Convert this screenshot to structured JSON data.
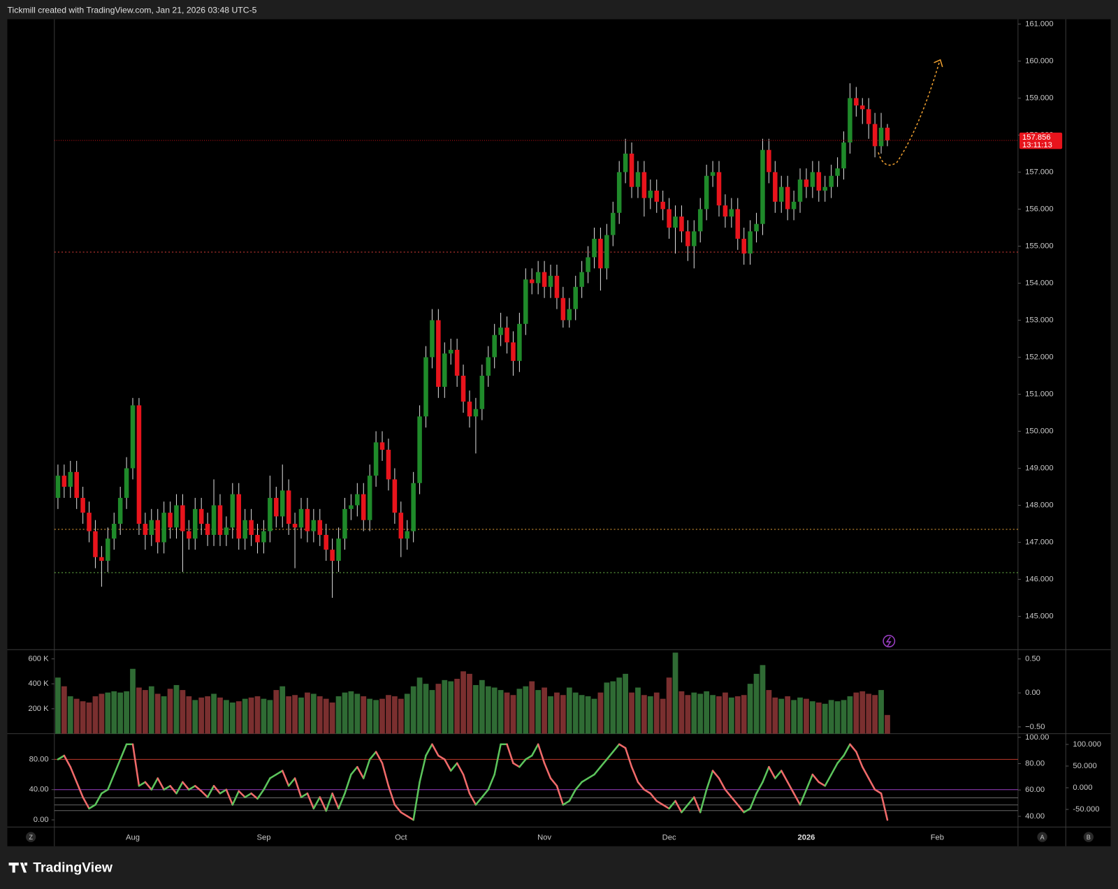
{
  "header": "Tickmill created with TradingView.com, Jan 21, 2026 03:48 UTC-5",
  "footer_logo": "TradingView",
  "buttons": [
    "Z",
    "A",
    "B"
  ],
  "chart_data": [
    {
      "type": "candlestick",
      "categories": [
        null,
        null,
        null,
        null,
        null,
        null,
        null,
        null,
        null,
        null,
        null,
        null,
        "Aug",
        null,
        null,
        null,
        null,
        null,
        null,
        null,
        null,
        null,
        null,
        null,
        null,
        null,
        null,
        null,
        null,
        null,
        null,
        null,
        null,
        "Sep",
        null,
        null,
        null,
        null,
        null,
        null,
        null,
        null,
        null,
        null,
        null,
        null,
        null,
        null,
        null,
        null,
        null,
        null,
        null,
        null,
        null,
        "Oct",
        null,
        null,
        null,
        null,
        null,
        null,
        null,
        null,
        null,
        null,
        null,
        null,
        null,
        null,
        null,
        null,
        null,
        null,
        null,
        null,
        null,
        null,
        "Nov",
        null,
        null,
        null,
        null,
        null,
        null,
        null,
        null,
        null,
        null,
        null,
        null,
        null,
        null,
        null,
        null,
        null,
        null,
        null,
        "Dec",
        null,
        null,
        null,
        null,
        null,
        null,
        null,
        null,
        null,
        null,
        null,
        null,
        null,
        null,
        null,
        null,
        null,
        null,
        null,
        null,
        null,
        "2026",
        null,
        null,
        null,
        null,
        null,
        null,
        null,
        null,
        null,
        null,
        null,
        null,
        null,
        null,
        null,
        null,
        null,
        null,
        null,
        null,
        "Feb"
      ],
      "open": [
        148.2,
        148.8,
        148.5,
        148.9,
        148.2,
        147.8,
        147.3,
        146.6,
        146.5,
        147.1,
        147.5,
        148.2,
        149.0,
        150.7,
        147.5,
        147.2,
        147.6,
        147.0,
        147.8,
        147.4,
        148.0,
        147.3,
        147.1,
        147.9,
        147.5,
        147.2,
        148.0,
        147.2,
        147.4,
        148.3,
        147.1,
        147.6,
        147.2,
        147.0,
        147.3,
        148.2,
        147.7,
        148.4,
        147.5,
        147.4,
        147.9,
        147.3,
        147.6,
        147.2,
        146.8,
        146.5,
        147.1,
        147.9,
        148.0,
        148.3,
        147.6,
        148.8,
        149.7,
        149.5,
        148.7,
        147.8,
        147.1,
        147.3,
        148.6,
        150.4,
        152.0,
        153.0,
        151.2,
        152.1,
        152.2,
        151.5,
        150.8,
        150.4,
        150.6,
        151.5,
        152.0,
        152.6,
        152.8,
        152.4,
        151.9,
        152.9,
        154.1,
        154.0,
        154.3,
        153.9,
        154.2,
        153.6,
        153.0,
        153.3,
        153.9,
        154.3,
        154.7,
        155.2,
        154.4,
        155.3,
        155.9,
        157.0,
        157.5,
        156.6,
        157.0,
        156.3,
        156.5,
        156.2,
        156.0,
        155.5,
        155.8,
        155.4,
        155.0,
        155.4,
        156.0,
        156.9,
        157.0,
        156.1,
        155.8,
        156.0,
        155.2,
        154.8,
        155.4,
        155.6,
        157.6,
        157.0,
        156.2,
        156.6,
        156.0,
        156.2,
        156.8,
        156.6,
        157.0,
        156.5,
        156.6,
        156.9,
        157.1,
        157.8,
        159.0,
        158.8,
        158.7,
        158.3,
        157.7,
        158.2,
        null,
        null,
        null,
        null,
        null,
        null,
        null,
        null
      ],
      "high": [
        149.1,
        149.1,
        149.2,
        149.2,
        148.5,
        148.1,
        147.6,
        146.9,
        147.4,
        147.8,
        148.5,
        149.3,
        150.9,
        150.9,
        147.8,
        147.9,
        147.9,
        148.1,
        148.1,
        148.3,
        148.3,
        147.6,
        148.2,
        148.2,
        147.8,
        148.7,
        148.3,
        147.7,
        148.6,
        148.6,
        147.9,
        147.9,
        147.5,
        147.6,
        148.8,
        148.5,
        149.1,
        148.7,
        147.8,
        148.2,
        148.2,
        147.9,
        147.9,
        147.5,
        147.1,
        147.4,
        148.2,
        148.3,
        148.6,
        148.6,
        149.1,
        150.0,
        150.0,
        149.8,
        149.0,
        148.1,
        147.6,
        148.9,
        150.7,
        152.3,
        153.3,
        153.3,
        152.4,
        152.5,
        152.5,
        151.8,
        151.1,
        150.9,
        151.8,
        152.3,
        152.9,
        153.2,
        153.1,
        152.7,
        153.2,
        154.4,
        154.4,
        154.6,
        154.6,
        154.5,
        154.5,
        153.9,
        153.6,
        154.2,
        154.6,
        155.0,
        155.5,
        155.5,
        155.6,
        156.2,
        157.3,
        157.9,
        157.8,
        157.3,
        157.3,
        156.8,
        156.8,
        156.5,
        156.3,
        156.1,
        156.1,
        155.7,
        155.7,
        156.3,
        157.2,
        157.3,
        157.3,
        156.4,
        156.3,
        156.3,
        155.5,
        155.7,
        155.9,
        157.9,
        157.9,
        157.3,
        156.9,
        156.9,
        156.5,
        157.1,
        157.1,
        157.3,
        157.3,
        156.9,
        157.2,
        157.4,
        158.1,
        159.4,
        159.3,
        159.0,
        159.0,
        158.6,
        158.6,
        158.3,
        null,
        null,
        null,
        null,
        null,
        null,
        null,
        null
      ],
      "low": [
        147.9,
        148.2,
        148.2,
        147.9,
        147.5,
        147.0,
        146.3,
        145.8,
        146.2,
        146.8,
        147.2,
        147.9,
        148.7,
        147.2,
        146.8,
        146.9,
        146.7,
        146.7,
        147.1,
        147.1,
        146.2,
        146.8,
        146.8,
        147.2,
        146.9,
        146.9,
        146.9,
        146.9,
        147.1,
        146.8,
        146.8,
        146.9,
        146.7,
        146.7,
        147.0,
        147.4,
        147.4,
        147.2,
        146.3,
        147.1,
        147.0,
        147.0,
        146.9,
        146.5,
        145.5,
        146.2,
        146.8,
        147.6,
        147.7,
        147.3,
        147.3,
        148.5,
        149.2,
        148.4,
        147.5,
        146.6,
        146.8,
        147.0,
        148.3,
        150.1,
        151.7,
        150.9,
        150.9,
        151.8,
        151.2,
        150.5,
        150.1,
        149.4,
        150.3,
        151.2,
        151.7,
        152.3,
        152.1,
        151.5,
        151.6,
        152.6,
        153.7,
        153.7,
        153.6,
        153.6,
        153.3,
        152.8,
        152.8,
        153.0,
        153.6,
        154.0,
        154.4,
        153.8,
        154.1,
        155.0,
        155.6,
        156.7,
        156.3,
        156.3,
        155.8,
        156.0,
        155.9,
        155.7,
        155.2,
        154.8,
        155.1,
        154.6,
        154.4,
        155.1,
        155.7,
        156.6,
        155.8,
        155.5,
        155.5,
        154.9,
        154.5,
        154.5,
        155.1,
        155.3,
        156.7,
        155.9,
        155.9,
        155.7,
        155.7,
        155.9,
        156.3,
        156.3,
        156.2,
        156.2,
        156.3,
        156.6,
        156.8,
        157.5,
        158.5,
        158.3,
        157.9,
        157.4,
        157.5,
        157.7,
        null,
        null,
        null,
        null,
        null,
        null,
        null,
        null
      ],
      "close": [
        148.8,
        148.5,
        148.9,
        148.2,
        147.8,
        147.3,
        146.6,
        146.5,
        147.1,
        147.5,
        148.2,
        149.0,
        150.7,
        147.5,
        147.2,
        147.6,
        147.0,
        147.8,
        147.4,
        148.0,
        147.3,
        147.1,
        147.9,
        147.5,
        147.2,
        148.0,
        147.2,
        147.4,
        148.3,
        147.1,
        147.6,
        147.2,
        147.0,
        147.3,
        148.2,
        147.7,
        148.4,
        147.5,
        147.4,
        147.9,
        147.3,
        147.6,
        147.2,
        146.8,
        146.5,
        147.1,
        147.9,
        148.0,
        148.3,
        147.6,
        148.8,
        149.7,
        149.5,
        148.7,
        147.8,
        147.1,
        147.3,
        148.6,
        150.4,
        152.0,
        153.0,
        151.2,
        152.1,
        152.2,
        151.5,
        150.8,
        150.4,
        150.6,
        151.5,
        152.0,
        152.6,
        152.8,
        152.4,
        151.9,
        152.9,
        154.1,
        154.0,
        154.3,
        153.9,
        154.2,
        153.6,
        153.0,
        153.3,
        153.9,
        154.3,
        154.7,
        155.2,
        154.4,
        155.3,
        155.9,
        157.0,
        157.5,
        156.6,
        157.0,
        156.3,
        156.5,
        156.2,
        156.0,
        155.5,
        155.8,
        155.4,
        155.0,
        155.4,
        156.0,
        156.9,
        157.0,
        156.1,
        155.8,
        156.0,
        155.2,
        154.8,
        155.4,
        155.6,
        157.6,
        157.0,
        156.2,
        156.6,
        156.0,
        156.2,
        156.8,
        156.6,
        157.0,
        156.5,
        156.6,
        156.9,
        157.1,
        157.8,
        159.0,
        158.8,
        158.7,
        158.3,
        157.7,
        158.2,
        157.86,
        null,
        null,
        null,
        null,
        null,
        null,
        null,
        null
      ],
      "up_color": "#1f8a2a",
      "down_color": "#e8141c",
      "ylim": [
        144.1,
        161.13
      ],
      "yticks": [
        {
          "value": 145,
          "label": "145.000"
        },
        {
          "value": 146,
          "label": "146.000"
        },
        {
          "value": 147,
          "label": "147.000"
        },
        {
          "value": 148,
          "label": "148.000"
        },
        {
          "value": 149,
          "label": "149.000"
        },
        {
          "value": 150,
          "label": "150.000"
        },
        {
          "value": 151,
          "label": "151.000"
        },
        {
          "value": 152,
          "label": "152.000"
        },
        {
          "value": 153,
          "label": "153.000"
        },
        {
          "value": 154,
          "label": "154.000"
        },
        {
          "value": 155,
          "label": "155.000"
        },
        {
          "value": 156,
          "label": "156.000"
        },
        {
          "value": 157,
          "label": "157.000"
        },
        {
          "value": 158,
          "label": "158.000"
        },
        {
          "value": 159,
          "label": "159.000"
        },
        {
          "value": 160,
          "label": "160.000"
        },
        {
          "value": 161,
          "label": "161.000"
        }
      ],
      "hlines": [
        {
          "value": 154.84,
          "color": "#e0413a"
        },
        {
          "value": 147.35,
          "color": "#e8a33a"
        },
        {
          "value": 146.18,
          "color": "#6fbf4a"
        }
      ],
      "last_price": {
        "value": 157.856,
        "label": "157.856",
        "color": "#e8141c"
      },
      "countdown": "13:11:13"
    },
    {
      "type": "bar",
      "values": [
        450000,
        380000,
        300000,
        280000,
        260000,
        250000,
        300000,
        320000,
        330000,
        340000,
        330000,
        340000,
        520000,
        370000,
        350000,
        380000,
        320000,
        300000,
        360000,
        390000,
        350000,
        300000,
        270000,
        290000,
        300000,
        320000,
        290000,
        270000,
        250000,
        260000,
        280000,
        290000,
        300000,
        280000,
        270000,
        350000,
        380000,
        300000,
        310000,
        290000,
        330000,
        320000,
        300000,
        280000,
        250000,
        300000,
        330000,
        340000,
        320000,
        300000,
        280000,
        270000,
        280000,
        310000,
        300000,
        280000,
        320000,
        380000,
        450000,
        400000,
        350000,
        400000,
        430000,
        420000,
        440000,
        500000,
        480000,
        390000,
        430000,
        380000,
        370000,
        350000,
        330000,
        310000,
        360000,
        380000,
        420000,
        350000,
        370000,
        300000,
        330000,
        310000,
        370000,
        330000,
        310000,
        300000,
        280000,
        330000,
        410000,
        420000,
        450000,
        480000,
        330000,
        370000,
        310000,
        300000,
        330000,
        280000,
        450000,
        650000,
        340000,
        310000,
        330000,
        320000,
        340000,
        310000,
        300000,
        330000,
        290000,
        300000,
        310000,
        400000,
        480000,
        550000,
        350000,
        290000,
        280000,
        300000,
        270000,
        290000,
        280000,
        260000,
        250000,
        240000,
        270000,
        260000,
        270000,
        300000,
        330000,
        340000,
        320000,
        310000,
        350000,
        150000,
        null,
        null,
        null,
        null,
        null,
        null,
        null,
        null
      ],
      "up_color": "#2f6b34",
      "down_color": "#7a2f2f",
      "ylim": [
        0,
        668000
      ],
      "yticks": [
        {
          "value": 200000,
          "label": "200 K"
        },
        {
          "value": 400000,
          "label": "400 K"
        },
        {
          "value": 600000,
          "label": "600 K"
        }
      ],
      "y2lim": [
        -0.6,
        0.626
      ],
      "y2ticks": [
        {
          "value": -0.5,
          "label": "−0.50"
        },
        {
          "value": 0,
          "label": "0.00"
        },
        {
          "value": 0.5,
          "label": "0.50"
        }
      ]
    },
    {
      "type": "line",
      "values": [
        80,
        85,
        70,
        50,
        30,
        15,
        20,
        35,
        40,
        60,
        80,
        100,
        100,
        45,
        50,
        40,
        55,
        40,
        45,
        35,
        50,
        40,
        45,
        38,
        30,
        45,
        35,
        40,
        20,
        38,
        30,
        35,
        28,
        40,
        55,
        60,
        65,
        45,
        55,
        30,
        35,
        15,
        30,
        12,
        35,
        15,
        35,
        60,
        70,
        55,
        80,
        90,
        75,
        45,
        20,
        10,
        5,
        0,
        50,
        85,
        100,
        85,
        80,
        65,
        75,
        60,
        35,
        20,
        30,
        40,
        60,
        100,
        100,
        75,
        70,
        80,
        85,
        100,
        75,
        55,
        45,
        20,
        25,
        40,
        50,
        55,
        60,
        70,
        80,
        90,
        100,
        95,
        70,
        50,
        40,
        35,
        25,
        20,
        15,
        25,
        10,
        20,
        30,
        10,
        40,
        65,
        55,
        40,
        30,
        20,
        10,
        15,
        35,
        50,
        70,
        55,
        65,
        50,
        35,
        20,
        40,
        60,
        50,
        45,
        60,
        75,
        85,
        100,
        90,
        70,
        55,
        40,
        35,
        0,
        null,
        null,
        null,
        null,
        null,
        null,
        null,
        null
      ],
      "up_color": "#5cc45c",
      "down_color": "#f06a6a",
      "ylim": [
        -8.5,
        113
      ],
      "yticks": [
        {
          "value": 0,
          "label": "0.00"
        },
        {
          "value": 40,
          "label": "40.00"
        },
        {
          "value": 80,
          "label": "80.00"
        }
      ],
      "hlines": [
        {
          "value": 80,
          "color": "#c0392b"
        },
        {
          "value": 40,
          "color": "#9b3fc4"
        }
      ],
      "y2lim": [
        32.4,
        102.2
      ],
      "y2ticks": [
        {
          "value": 40,
          "label": "40.00"
        },
        {
          "value": 60,
          "label": "60.00"
        },
        {
          "value": 80,
          "label": "80.00"
        },
        {
          "value": 100,
          "label": "100.00"
        }
      ],
      "y3lim": [
        -89,
        123
      ],
      "y3ticks": [
        {
          "value": -50,
          "label": "-50.000"
        },
        {
          "value": 0,
          "label": "0.000"
        },
        {
          "value": 50,
          "label": "50.000"
        },
        {
          "value": 100,
          "label": "100.000"
        }
      ]
    }
  ]
}
